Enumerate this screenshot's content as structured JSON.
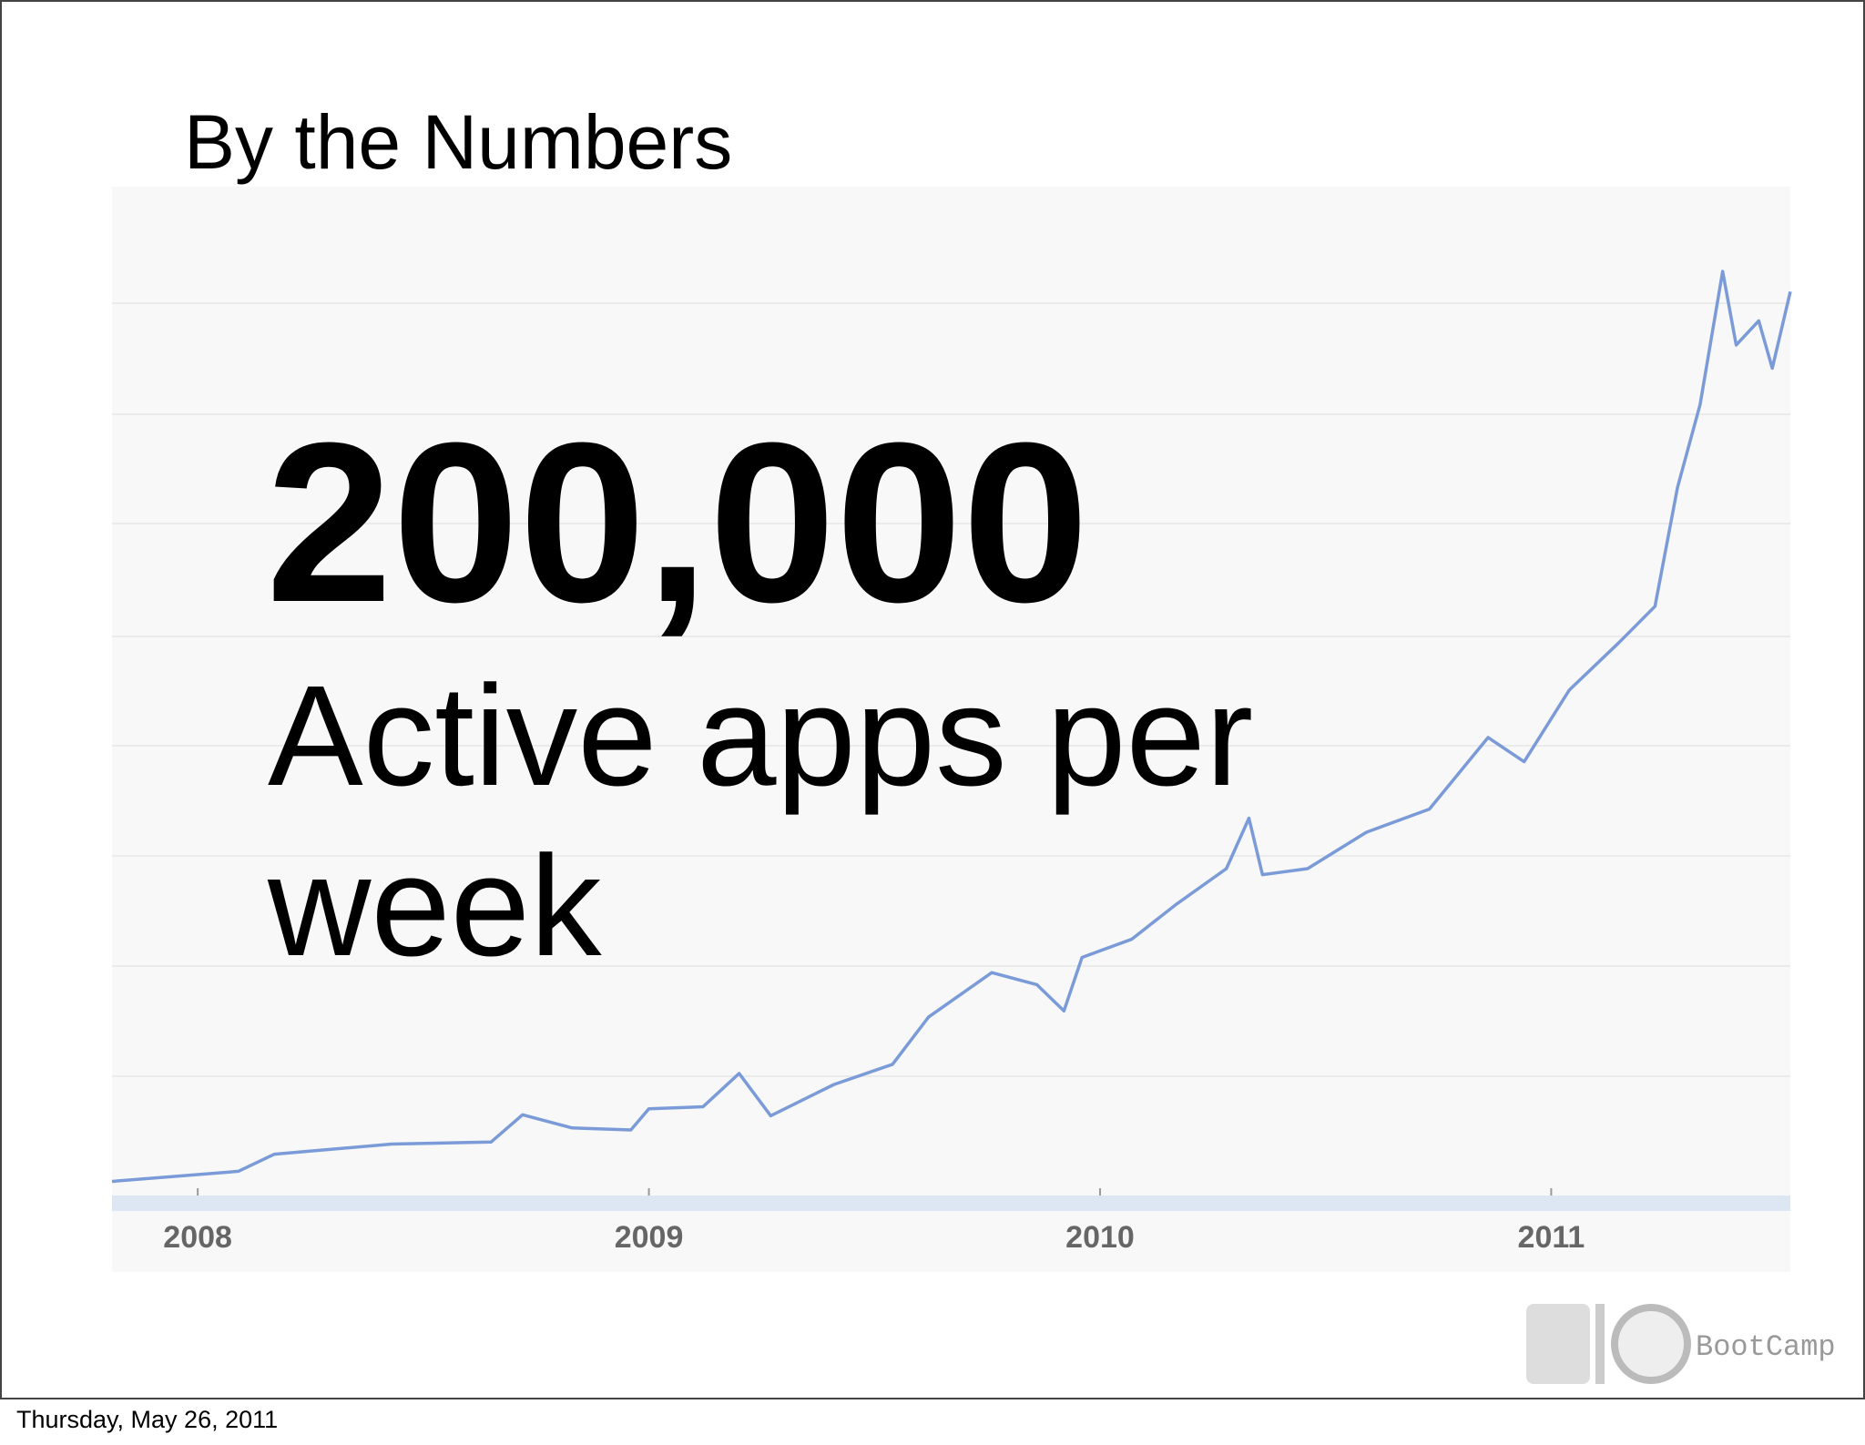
{
  "slide": {
    "title": "By the Numbers",
    "headline": "200,000",
    "caption_lines": [
      "Active apps per",
      "week"
    ],
    "footer": "Thursday, May 26, 2011",
    "logo": "BootCamp"
  },
  "chart_data": {
    "type": "line",
    "x": [
      2007.81,
      2008.09,
      2008.17,
      2008.43,
      2008.65,
      2008.72,
      2008.83,
      2008.96,
      2009.0,
      2009.12,
      2009.2,
      2009.27,
      2009.41,
      2009.54,
      2009.62,
      2009.76,
      2009.86,
      2009.92,
      2009.96,
      2010.07,
      2010.17,
      2010.28,
      2010.33,
      2010.36,
      2010.46,
      2010.59,
      2010.73,
      2010.86,
      2010.94,
      2011.04,
      2011.15,
      2011.23,
      2011.28,
      2011.33,
      2011.38,
      2011.41,
      2011.46,
      2011.49,
      2011.53
    ],
    "series": [
      {
        "color": "#7b9bd8",
        "values": [
          1.4,
          2.4,
          4.1,
          5.1,
          5.3,
          8.0,
          6.7,
          6.5,
          8.6,
          8.8,
          12.1,
          7.9,
          11.0,
          13.0,
          17.7,
          22.1,
          20.9,
          18.3,
          23.6,
          25.4,
          28.9,
          32.4,
          37.4,
          31.8,
          32.4,
          36.0,
          38.3,
          45.4,
          43.0,
          50.1,
          54.8,
          58.4,
          70.2,
          78.4,
          91.6,
          84.3,
          86.7,
          82.0,
          89.6
        ]
      }
    ],
    "xlim": [
      2007.81,
      2011.53
    ],
    "xticks": [
      2008,
      2009,
      2010,
      2011
    ],
    "ylim": [
      0,
      100
    ]
  }
}
